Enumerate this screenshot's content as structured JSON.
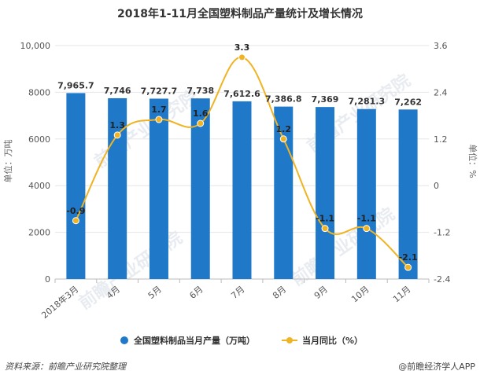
{
  "chart_data": {
    "type": "bar+line",
    "title": "2018年1-11月全国塑料制品产量统计及增长情况",
    "categories": [
      "2018年3月",
      "4月",
      "5月",
      "6月",
      "7月",
      "8月",
      "9月",
      "10月",
      "11月"
    ],
    "series": [
      {
        "name": "全国塑料制品当月产量（万吨）",
        "type": "bar",
        "axis": "left",
        "color": "#1f78c8",
        "values": [
          7965.7,
          7746,
          7727.7,
          7738,
          7612.6,
          7386.8,
          7369,
          7281.3,
          7262
        ],
        "labels": [
          "7,965.7",
          "7,746",
          "7,727.7",
          "7,738",
          "7,612.6",
          "7,386.8",
          "7,369",
          "7,281.3",
          "7,262"
        ]
      },
      {
        "name": "当月同比（%）",
        "type": "line",
        "axis": "right",
        "color": "#f0b323",
        "values": [
          -0.9,
          1.3,
          1.7,
          1.6,
          3.3,
          1.2,
          -1.1,
          -1.1,
          -2.1
        ],
        "labels": [
          "-0.9",
          "1.3",
          "1.7",
          "1.6",
          "3.3",
          "1.2",
          "-1.1",
          "-1.1",
          "-2.1"
        ]
      }
    ],
    "y_left": {
      "label": "单位：万吨",
      "ylim": [
        0,
        10000
      ],
      "ticks": [
        0,
        2000,
        4000,
        6000,
        8000,
        10000
      ],
      "tick_labels": [
        "0",
        "2000",
        "4000",
        "6000",
        "8000",
        "10,000"
      ]
    },
    "y_right": {
      "label": "单位：%",
      "ylim": [
        -2.4,
        3.6
      ],
      "ticks": [
        -2.4,
        -1.2,
        0,
        1.2,
        2.4,
        3.6
      ],
      "tick_labels": [
        "-2.4",
        "-1.2",
        "0",
        "1.2",
        "2.4",
        "3.6"
      ]
    },
    "grid": true,
    "legend_position": "bottom-center"
  },
  "footer": {
    "source": "资料来源：前瞻产业研究院整理",
    "brand": "@前瞻经济学人APP"
  },
  "watermark": "前瞻产业研究院"
}
